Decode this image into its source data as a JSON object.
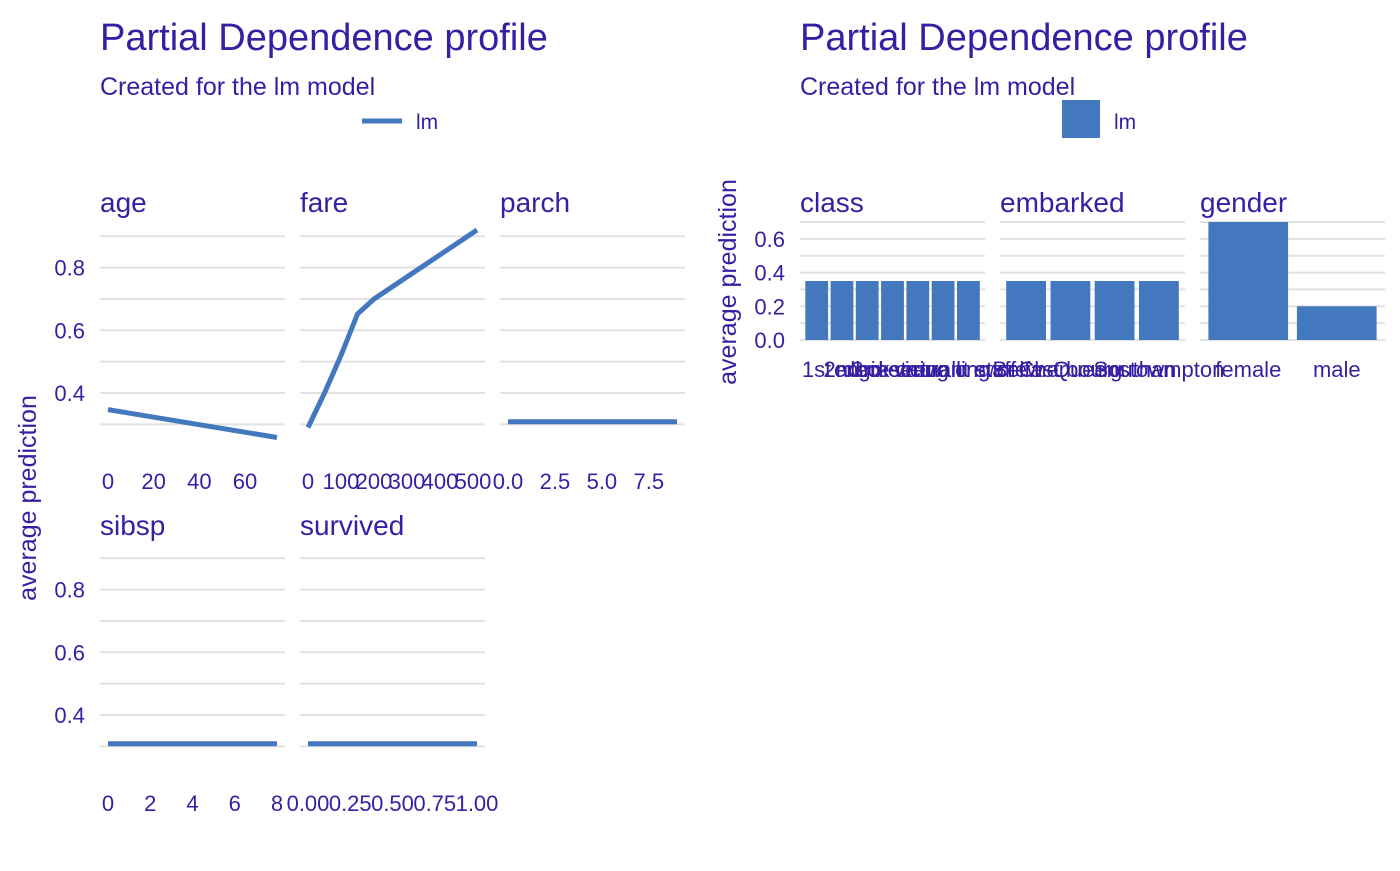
{
  "colors": {
    "text": "#371EA3",
    "line": "#4378BF",
    "bar": "#4378BF",
    "grid": "#E2E2E2"
  },
  "left_panel": {
    "title": "Partial Dependence profile",
    "subtitle": "Created for the lm model",
    "ylabel": "average prediction",
    "legend": "lm"
  },
  "right_panel": {
    "title": "Partial Dependence profile",
    "subtitle": "Created for the lm model",
    "ylabel": "average prediction",
    "legend": "lm"
  },
  "chart_data": [
    {
      "type": "line",
      "title": "Partial Dependence profile",
      "subtitle": "Created for the lm model",
      "ylabel": "average prediction",
      "legend": [
        "lm"
      ],
      "ylim": [
        0.25,
        0.92
      ],
      "yticks": [
        0.4,
        0.6,
        0.8
      ],
      "facets": [
        {
          "name": "age",
          "xlim": [
            0,
            74
          ],
          "xticks": [
            0,
            20,
            40,
            60
          ],
          "xtick_labels": [
            "0",
            "20",
            "40",
            "60"
          ],
          "series": [
            {
              "name": "lm",
              "x": [
                0,
                74
              ],
              "y": [
                0.347,
                0.258
              ]
            }
          ]
        },
        {
          "name": "fare",
          "xlim": [
            0,
            512
          ],
          "xticks": [
            0,
            100,
            200,
            300,
            400,
            500
          ],
          "xtick_labels": [
            "0",
            "100",
            "200",
            "300",
            "400",
            "500"
          ],
          "series": [
            {
              "name": "lm",
              "x": [
                0,
                50,
                100,
                150,
                200,
                512
              ],
              "y": [
                0.29,
                0.4,
                0.52,
                0.652,
                0.7,
                0.92
              ]
            }
          ]
        },
        {
          "name": "parch",
          "xlim": [
            0,
            9
          ],
          "xticks": [
            0,
            2.5,
            5,
            7.5
          ],
          "xtick_labels": [
            "0.0",
            "2.5",
            "5.0",
            "7.5"
          ],
          "series": [
            {
              "name": "lm",
              "x": [
                0,
                9
              ],
              "y": [
                0.308,
                0.308
              ]
            }
          ]
        },
        {
          "name": "sibsp",
          "xlim": [
            0,
            8
          ],
          "xticks": [
            0,
            2,
            4,
            6,
            8
          ],
          "xtick_labels": [
            "0",
            "2",
            "4",
            "6",
            "8"
          ],
          "series": [
            {
              "name": "lm",
              "x": [
                0,
                8
              ],
              "y": [
                0.308,
                0.308
              ]
            }
          ]
        },
        {
          "name": "survived",
          "xlim": [
            0,
            1
          ],
          "xticks": [
            0,
            0.25,
            0.5,
            0.75,
            1
          ],
          "xtick_labels": [
            "0.00",
            "0.25",
            "0.50",
            "0.75",
            "1.00"
          ],
          "series": [
            {
              "name": "lm",
              "x": [
                0,
                1
              ],
              "y": [
                0.308,
                0.308
              ]
            }
          ]
        }
      ]
    },
    {
      "type": "bar",
      "title": "Partial Dependence profile",
      "subtitle": "Created for the lm model",
      "ylabel": "average prediction",
      "legend": [
        "lm"
      ],
      "ylim": [
        0,
        0.7
      ],
      "yticks": [
        0,
        0.2,
        0.4,
        0.6
      ],
      "ytick_labels": [
        "0.0",
        "0.2",
        "0.4",
        "0.6"
      ],
      "facets": [
        {
          "name": "class",
          "categories": [
            "1st",
            "2nd",
            "3rd",
            "deck crew",
            "engineering crew",
            "restaurant staff",
            "victualling crew"
          ],
          "values": [
            0.35,
            0.35,
            0.35,
            0.35,
            0.35,
            0.35,
            0.35
          ]
        },
        {
          "name": "embarked",
          "categories": [
            "Belfast",
            "Cherbourg",
            "Queenstown",
            "Southampton"
          ],
          "values": [
            0.35,
            0.35,
            0.35,
            0.35
          ]
        },
        {
          "name": "gender",
          "categories": [
            "female",
            "male"
          ],
          "values": [
            0.7,
            0.2
          ]
        }
      ]
    }
  ]
}
